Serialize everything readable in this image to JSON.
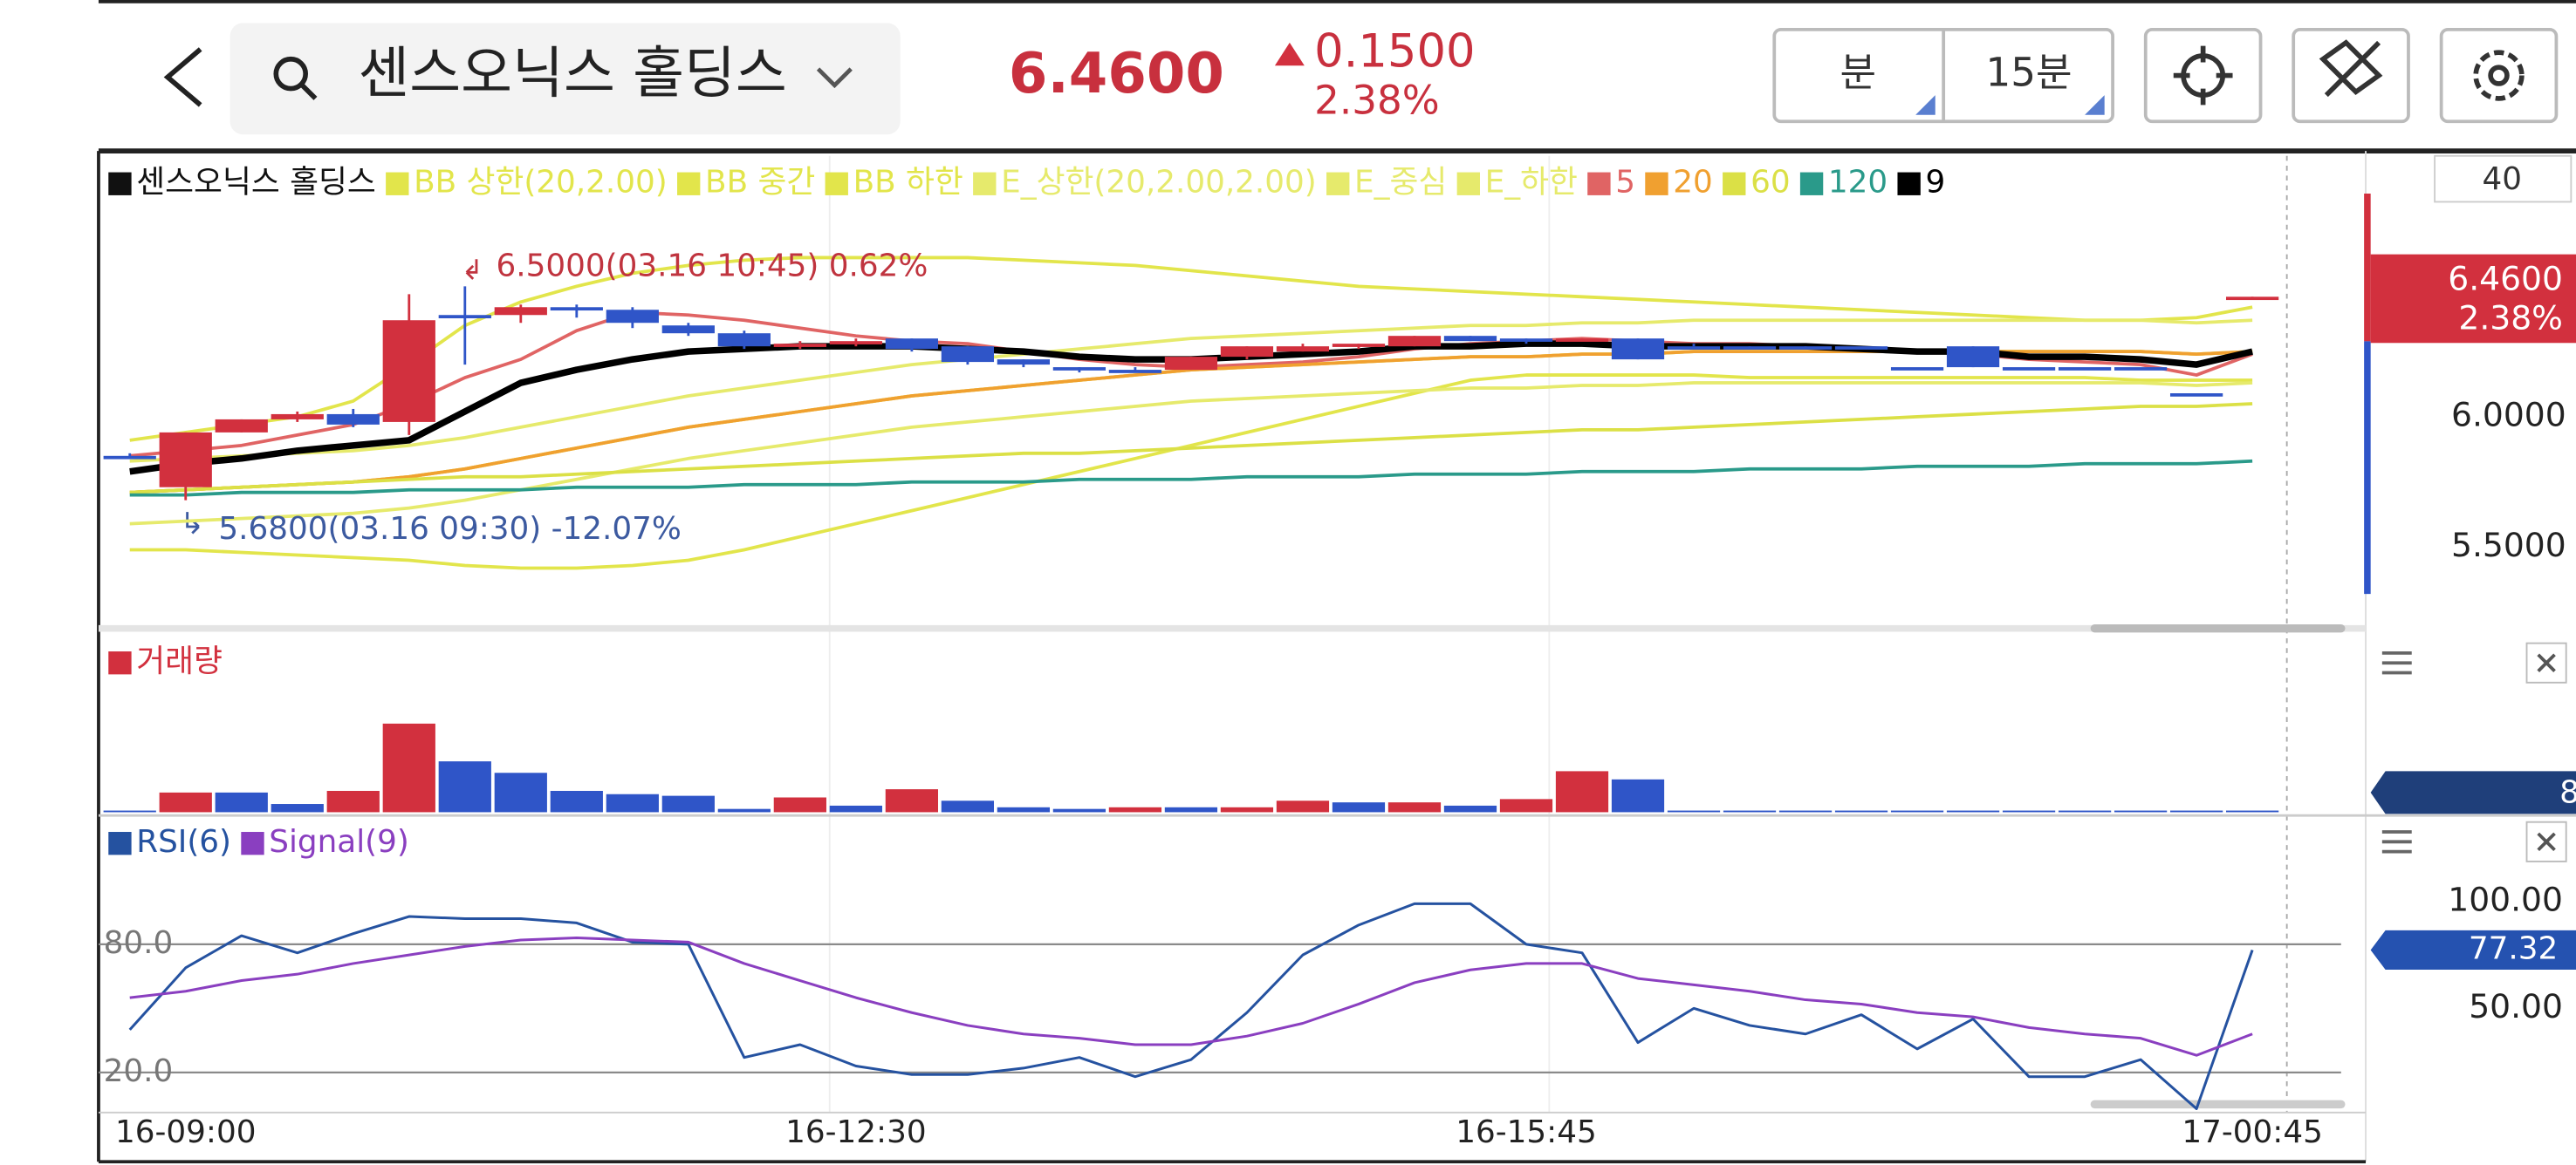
{
  "header": {
    "title": "센스오닉스 홀딩스",
    "price": "6.4600",
    "change": "0.1500",
    "change_pct": "2.38%",
    "period_unit": "분",
    "period": "15분"
  },
  "scale_input": "40",
  "chart_data": [
    {
      "type": "candlestick",
      "name": "센스오닉스 홀딩스",
      "categories": [
        null,
        "16-09:00",
        null,
        null,
        null,
        null,
        null,
        null,
        null,
        null,
        null,
        null,
        null,
        "16-12:30",
        null,
        null,
        null,
        null,
        null,
        null,
        null,
        null,
        null,
        null,
        null,
        "16-15:45",
        null,
        null,
        null,
        null,
        null,
        null,
        null,
        null,
        null,
        null,
        null,
        null,
        "17-00:45"
      ],
      "open": [
        5.85,
        5.73,
        5.94,
        5.99,
        6.01,
        5.98,
        6.39,
        6.39,
        6.42,
        6.41,
        6.35,
        6.32,
        6.27,
        6.28,
        6.3,
        6.27,
        6.22,
        6.19,
        6.18,
        6.18,
        6.23,
        6.25,
        6.27,
        6.27,
        6.31,
        6.3,
        6.29,
        6.3,
        6.27,
        6.27,
        6.27,
        6.27,
        6.19,
        6.27,
        6.19,
        6.19,
        6.19,
        6.09,
        6.45
      ],
      "high": [
        5.86,
        5.94,
        5.99,
        6.02,
        6.03,
        6.47,
        6.5,
        6.43,
        6.43,
        6.42,
        6.36,
        6.33,
        6.29,
        6.3,
        6.3,
        6.27,
        6.22,
        6.19,
        6.19,
        6.23,
        6.27,
        6.28,
        6.28,
        6.31,
        6.31,
        6.3,
        6.3,
        6.3,
        6.28,
        6.27,
        6.27,
        6.27,
        6.19,
        6.27,
        6.19,
        6.19,
        6.19,
        6.09,
        6.46
      ],
      "low": [
        5.84,
        5.68,
        5.94,
        5.98,
        5.96,
        5.93,
        6.2,
        6.36,
        6.38,
        6.34,
        6.31,
        6.26,
        6.26,
        6.27,
        6.25,
        6.2,
        6.19,
        6.17,
        6.17,
        6.18,
        6.22,
        6.25,
        6.26,
        6.27,
        6.29,
        6.28,
        6.29,
        6.22,
        6.27,
        6.26,
        6.26,
        6.27,
        6.19,
        6.19,
        6.19,
        6.19,
        6.19,
        6.09,
        6.45
      ],
      "close": [
        5.85,
        5.94,
        5.99,
        6.01,
        5.97,
        6.37,
        6.39,
        6.42,
        6.41,
        6.36,
        6.32,
        6.27,
        6.28,
        6.29,
        6.26,
        6.21,
        6.2,
        6.18,
        6.18,
        6.23,
        6.27,
        6.27,
        6.28,
        6.31,
        6.29,
        6.29,
        6.3,
        6.22,
        6.27,
        6.27,
        6.26,
        6.27,
        6.19,
        6.19,
        6.19,
        6.19,
        6.19,
        6.09,
        6.46
      ],
      "up_color": "#d2303e",
      "down_color": "#2f55c8",
      "name_color": "#111111",
      "ylim": [
        5.22,
        7.0
      ],
      "yticks": [
        {
          "value": 5.5,
          "label": "5.5000"
        },
        {
          "value": 6.0,
          "label": "6.0000"
        }
      ],
      "grid": false,
      "annotations": [
        "6.5000(03.16 10:45) 0.62%",
        "5.6800(03.16 09:30) -12.07%"
      ],
      "series": [
        {
          "name": "BB 상한(20,2.00)",
          "color": "#e2e54b",
          "values": [
            5.91,
            5.94,
            5.97,
            6.0,
            6.06,
            6.2,
            6.35,
            6.44,
            6.5,
            6.55,
            6.58,
            6.6,
            6.61,
            6.61,
            6.61,
            6.61,
            6.6,
            6.59,
            6.58,
            6.56,
            6.54,
            6.52,
            6.5,
            6.49,
            6.48,
            6.47,
            6.46,
            6.45,
            6.44,
            6.43,
            6.42,
            6.41,
            6.4,
            6.39,
            6.38,
            6.37,
            6.37,
            6.38,
            6.42
          ]
        },
        {
          "name": "BB 중간",
          "color": "#e2e54b",
          "values": [
            5.71,
            5.72,
            5.73,
            5.74,
            5.75,
            5.77,
            5.8,
            5.84,
            5.88,
            5.92,
            5.96,
            5.99,
            6.02,
            6.05,
            6.08,
            6.1,
            6.12,
            6.14,
            6.16,
            6.18,
            6.19,
            6.2,
            6.21,
            6.22,
            6.23,
            6.23,
            6.24,
            6.24,
            6.25,
            6.25,
            6.25,
            6.25,
            6.25,
            6.25,
            6.25,
            6.25,
            6.25,
            6.24,
            6.25
          ]
        },
        {
          "name": "BB 하한",
          "color": "#e2e54b",
          "values": [
            5.49,
            5.49,
            5.48,
            5.47,
            5.46,
            5.45,
            5.43,
            5.42,
            5.42,
            5.43,
            5.45,
            5.49,
            5.54,
            5.59,
            5.64,
            5.69,
            5.74,
            5.79,
            5.84,
            5.89,
            5.94,
            5.99,
            6.04,
            6.09,
            6.14,
            6.16,
            6.16,
            6.16,
            6.16,
            6.15,
            6.15,
            6.15,
            6.15,
            6.15,
            6.15,
            6.15,
            6.14,
            6.14,
            6.14
          ]
        },
        {
          "name": "E_상한(20,2.00,2.00)",
          "color": "#e6ea6c",
          "values": [
            5.83,
            5.84,
            5.85,
            5.86,
            5.87,
            5.89,
            5.92,
            5.96,
            6.0,
            6.04,
            6.08,
            6.11,
            6.14,
            6.17,
            6.2,
            6.22,
            6.24,
            6.26,
            6.28,
            6.3,
            6.31,
            6.32,
            6.33,
            6.34,
            6.35,
            6.35,
            6.36,
            6.36,
            6.37,
            6.37,
            6.37,
            6.37,
            6.37,
            6.37,
            6.37,
            6.37,
            6.37,
            6.36,
            6.37
          ]
        },
        {
          "name": "E_중심",
          "color": "#e6ea6c",
          "values": [
            5.71,
            5.72,
            5.73,
            5.74,
            5.75,
            5.77,
            5.8,
            5.84,
            5.88,
            5.92,
            5.96,
            5.99,
            6.02,
            6.05,
            6.08,
            6.1,
            6.12,
            6.14,
            6.16,
            6.18,
            6.19,
            6.2,
            6.21,
            6.22,
            6.23,
            6.23,
            6.24,
            6.24,
            6.25,
            6.25,
            6.25,
            6.25,
            6.25,
            6.25,
            6.25,
            6.25,
            6.25,
            6.24,
            6.25
          ]
        },
        {
          "name": "E_하한",
          "color": "#e6ea6c",
          "values": [
            5.59,
            5.6,
            5.61,
            5.62,
            5.63,
            5.65,
            5.68,
            5.72,
            5.76,
            5.8,
            5.84,
            5.87,
            5.9,
            5.93,
            5.96,
            5.98,
            6.0,
            6.02,
            6.04,
            6.06,
            6.07,
            6.08,
            6.09,
            6.1,
            6.11,
            6.11,
            6.12,
            6.12,
            6.13,
            6.13,
            6.13,
            6.13,
            6.13,
            6.13,
            6.13,
            6.13,
            6.13,
            6.12,
            6.13
          ]
        },
        {
          "name": "5",
          "color": "#e06464",
          "values": [
            5.85,
            5.87,
            5.89,
            5.93,
            5.97,
            6.05,
            6.15,
            6.22,
            6.33,
            6.4,
            6.39,
            6.37,
            6.34,
            6.31,
            6.29,
            6.28,
            6.25,
            6.22,
            6.2,
            6.19,
            6.2,
            6.21,
            6.23,
            6.26,
            6.28,
            6.29,
            6.3,
            6.29,
            6.28,
            6.28,
            6.27,
            6.26,
            6.25,
            6.24,
            6.22,
            6.21,
            6.2,
            6.16,
            6.24
          ]
        },
        {
          "name": "20",
          "color": "#f0a030",
          "values": [
            5.71,
            5.72,
            5.73,
            5.74,
            5.75,
            5.77,
            5.8,
            5.84,
            5.88,
            5.92,
            5.96,
            5.99,
            6.02,
            6.05,
            6.08,
            6.1,
            6.12,
            6.14,
            6.16,
            6.18,
            6.19,
            6.2,
            6.21,
            6.22,
            6.23,
            6.23,
            6.24,
            6.24,
            6.25,
            6.25,
            6.25,
            6.25,
            6.25,
            6.25,
            6.25,
            6.25,
            6.25,
            6.24,
            6.25
          ]
        },
        {
          "name": "60",
          "color": "#dbe046",
          "values": [
            5.71,
            5.72,
            5.73,
            5.74,
            5.75,
            5.76,
            5.77,
            5.77,
            5.78,
            5.79,
            5.8,
            5.81,
            5.82,
            5.83,
            5.84,
            5.85,
            5.86,
            5.86,
            5.87,
            5.88,
            5.89,
            5.9,
            5.91,
            5.92,
            5.93,
            5.94,
            5.95,
            5.95,
            5.96,
            5.97,
            5.98,
            5.99,
            6.0,
            6.01,
            6.02,
            6.03,
            6.04,
            6.04,
            6.05
          ]
        },
        {
          "name": "120",
          "color": "#2a9a8a",
          "values": [
            5.7,
            5.7,
            5.71,
            5.71,
            5.71,
            5.72,
            5.72,
            5.72,
            5.73,
            5.73,
            5.73,
            5.74,
            5.74,
            5.74,
            5.75,
            5.75,
            5.75,
            5.76,
            5.76,
            5.76,
            5.77,
            5.77,
            5.77,
            5.78,
            5.78,
            5.78,
            5.79,
            5.79,
            5.79,
            5.8,
            5.8,
            5.8,
            5.81,
            5.81,
            5.81,
            5.82,
            5.82,
            5.82,
            5.83
          ]
        },
        {
          "name": "9",
          "color": "#000000",
          "values": [
            5.79,
            5.82,
            5.84,
            5.87,
            5.89,
            5.91,
            6.02,
            6.13,
            6.18,
            6.22,
            6.25,
            6.26,
            6.27,
            6.27,
            6.27,
            6.26,
            6.25,
            6.23,
            6.22,
            6.22,
            6.23,
            6.24,
            6.25,
            6.27,
            6.27,
            6.28,
            6.28,
            6.27,
            6.27,
            6.27,
            6.27,
            6.26,
            6.25,
            6.25,
            6.23,
            6.23,
            6.22,
            6.2,
            6.25
          ]
        }
      ]
    },
    {
      "type": "bar",
      "title": "거래량",
      "color": "#d2303e",
      "values": [
        1,
        12,
        12,
        5,
        13,
        54,
        31,
        24,
        13,
        11,
        10,
        2,
        9,
        4,
        14,
        7,
        3,
        2,
        3,
        3,
        3,
        7,
        6,
        6,
        4,
        8,
        25,
        20,
        1,
        1,
        1,
        1,
        1,
        1,
        1,
        1,
        1,
        1,
        1
      ],
      "colors": [
        "#2f55c8",
        "#d2303e",
        "#2f55c8",
        "#2f55c8",
        "#d2303e",
        "#d2303e",
        "#2f55c8",
        "#2f55c8",
        "#2f55c8",
        "#2f55c8",
        "#2f55c8",
        "#2f55c8",
        "#d2303e",
        "#2f55c8",
        "#d2303e",
        "#2f55c8",
        "#2f55c8",
        "#2f55c8",
        "#d2303e",
        "#2f55c8",
        "#d2303e",
        "#d2303e",
        "#2f55c8",
        "#d2303e",
        "#2f55c8",
        "#d2303e",
        "#d2303e",
        "#2f55c8",
        "#2f55c8",
        "#2f55c8",
        "#2f55c8",
        "#2f55c8",
        "#2f55c8",
        "#2f55c8",
        "#2f55c8",
        "#2f55c8",
        "#2f55c8",
        "#2f55c8",
        "#2f55c8"
      ],
      "ylim": [
        0,
        100
      ],
      "value_badge": "8"
    },
    {
      "type": "line",
      "series": [
        {
          "name": "RSI(6)",
          "color": "#2552a0",
          "values": [
            40,
            69,
            84,
            76,
            85,
            93,
            92,
            92,
            90,
            81,
            80,
            27,
            33,
            23,
            19,
            19,
            22,
            27,
            18,
            26,
            48,
            75,
            89,
            99,
            99,
            80,
            76,
            34,
            50,
            42,
            38,
            47,
            31,
            45,
            18,
            18,
            26,
            3,
            77.32
          ]
        },
        {
          "name": "Signal(9)",
          "color": "#8a3fc0",
          "values": [
            55,
            58,
            63,
            66,
            71,
            75,
            79,
            82,
            83,
            82,
            81,
            71,
            63,
            55,
            48,
            42,
            38,
            36,
            33,
            33,
            37,
            43,
            52,
            62,
            68,
            71,
            71,
            64,
            61,
            58,
            54,
            52,
            48,
            46,
            41,
            38,
            36,
            28,
            38
          ]
        }
      ],
      "ylim": [
        2,
        138
      ],
      "yticks": [
        {
          "value": 20,
          "label": "20.0"
        },
        {
          "value": 80,
          "label": "80.0"
        }
      ],
      "y2lim": [
        2,
        138
      ],
      "y2ticks": [
        {
          "value": 50,
          "label": "50.00"
        },
        {
          "value": 100,
          "label": "100.00"
        }
      ],
      "grid": true,
      "value_badge": "77.32"
    }
  ]
}
